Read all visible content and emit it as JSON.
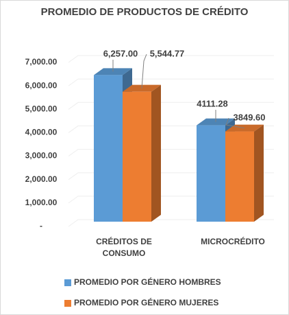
{
  "chart_data": {
    "type": "bar",
    "title": "PROMEDIO DE PRODUCTOS DE CRÉDITO",
    "categories": [
      "CRÉDITOS DE CONSUMO",
      "MICROCRÉDITO"
    ],
    "series": [
      {
        "name": "PROMEDIO POR GÉNERO HOMBRES",
        "color": "#5b9bd5",
        "values": [
          6257.0,
          4111.28
        ],
        "value_labels": [
          "6,257.00",
          "4111.28"
        ]
      },
      {
        "name": "PROMEDIO POR GÉNERO MUJERES",
        "color": "#ed7d31",
        "values": [
          5544.77,
          3849.6
        ],
        "value_labels": [
          "5,544.77",
          "3849.60"
        ]
      }
    ],
    "ylim": [
      0,
      7000
    ],
    "yticks": [
      {
        "value": 0,
        "label": "-"
      },
      {
        "value": 1000,
        "label": "1,000.00"
      },
      {
        "value": 2000,
        "label": "2,000.00"
      },
      {
        "value": 3000,
        "label": "3,000.00"
      },
      {
        "value": 4000,
        "label": "4,000.00"
      },
      {
        "value": 5000,
        "label": "5,000.00"
      },
      {
        "value": 6000,
        "label": "6,000.00"
      },
      {
        "value": 7000,
        "label": "7,000.00"
      }
    ],
    "grid": true,
    "legend": "bottom"
  }
}
